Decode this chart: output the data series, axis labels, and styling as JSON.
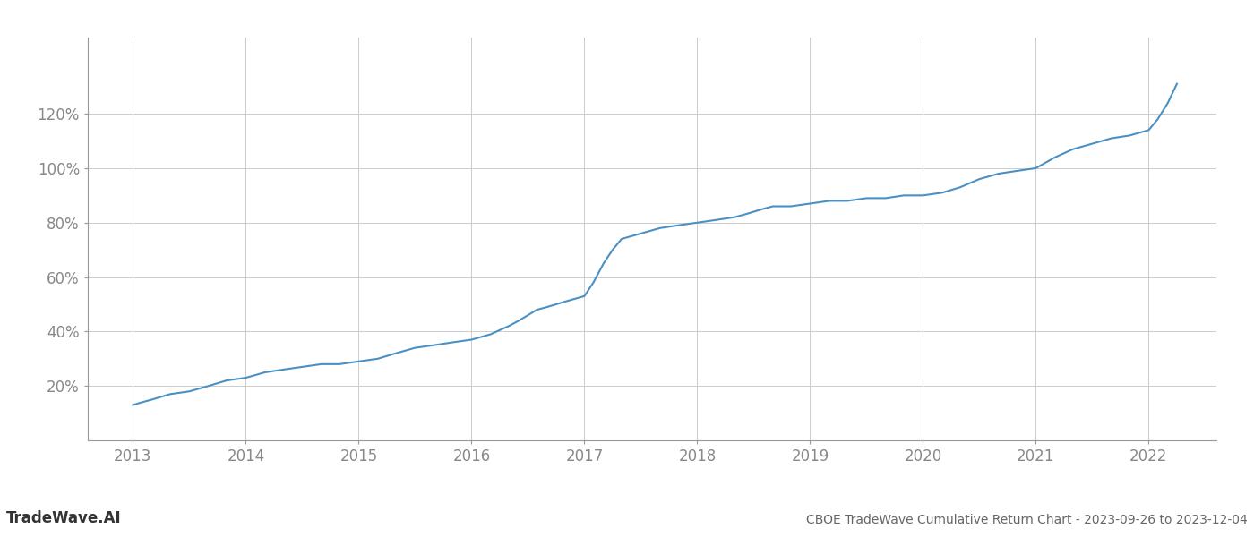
{
  "title": "CBOE TradeWave Cumulative Return Chart - 2023-09-26 to 2023-12-04",
  "watermark": "TradeWave.AI",
  "line_color": "#4a90c4",
  "background_color": "#ffffff",
  "grid_color": "#cccccc",
  "x_values": [
    2013.0,
    2013.08,
    2013.17,
    2013.33,
    2013.5,
    2013.67,
    2013.83,
    2014.0,
    2014.17,
    2014.33,
    2014.5,
    2014.67,
    2014.83,
    2015.0,
    2015.17,
    2015.33,
    2015.5,
    2015.67,
    2015.83,
    2016.0,
    2016.17,
    2016.33,
    2016.42,
    2016.5,
    2016.58,
    2016.67,
    2016.75,
    2016.83,
    2017.0,
    2017.08,
    2017.17,
    2017.25,
    2017.33,
    2017.5,
    2017.67,
    2017.83,
    2018.0,
    2018.17,
    2018.33,
    2018.42,
    2018.5,
    2018.58,
    2018.67,
    2018.83,
    2019.0,
    2019.17,
    2019.33,
    2019.5,
    2019.67,
    2019.83,
    2020.0,
    2020.17,
    2020.33,
    2020.5,
    2020.67,
    2020.83,
    2021.0,
    2021.17,
    2021.33,
    2021.5,
    2021.67,
    2021.83,
    2022.0,
    2022.08,
    2022.17,
    2022.25
  ],
  "y_values": [
    13,
    14,
    15,
    17,
    18,
    20,
    22,
    23,
    25,
    26,
    27,
    28,
    28,
    29,
    30,
    32,
    34,
    35,
    36,
    37,
    39,
    42,
    44,
    46,
    48,
    49,
    50,
    51,
    53,
    58,
    65,
    70,
    74,
    76,
    78,
    79,
    80,
    81,
    82,
    83,
    84,
    85,
    86,
    86,
    87,
    88,
    88,
    89,
    89,
    90,
    90,
    91,
    93,
    96,
    98,
    99,
    100,
    104,
    107,
    109,
    111,
    112,
    114,
    118,
    124,
    131
  ],
  "xlim": [
    2012.6,
    2022.6
  ],
  "ylim": [
    0,
    148
  ],
  "yticks": [
    20,
    40,
    60,
    80,
    100,
    120
  ],
  "ytick_labels": [
    "20%",
    "40%",
    "60%",
    "80%",
    "100%",
    "120%"
  ],
  "xticks": [
    2013,
    2014,
    2015,
    2016,
    2017,
    2018,
    2019,
    2020,
    2021,
    2022
  ],
  "xtick_labels": [
    "2013",
    "2014",
    "2015",
    "2016",
    "2017",
    "2018",
    "2019",
    "2020",
    "2021",
    "2022"
  ],
  "line_width": 1.5,
  "tick_fontsize": 12,
  "footer_fontsize_watermark": 12,
  "footer_fontsize_title": 10
}
